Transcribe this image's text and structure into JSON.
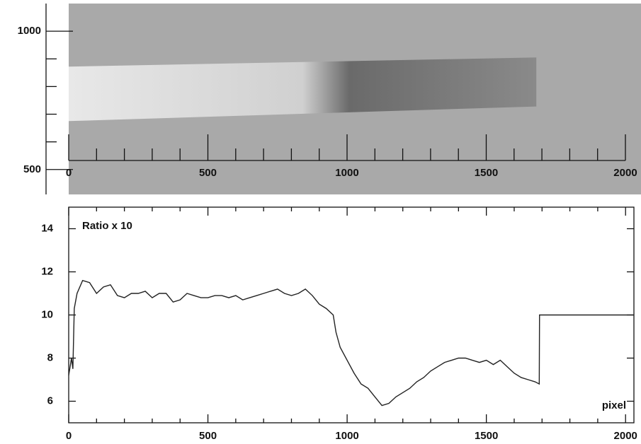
{
  "chart_data": [
    {
      "type": "image",
      "xlim": [
        0,
        2056
      ],
      "ylim": [
        410,
        1100
      ],
      "xticks": [
        0,
        500,
        1000,
        1500,
        2000
      ],
      "xminorticks": [
        100,
        200,
        300,
        400,
        600,
        700,
        800,
        900,
        1100,
        1200,
        1300,
        1400,
        1600,
        1700,
        1800,
        1900
      ],
      "yticks": [
        500,
        1000
      ],
      "yminorticks": [
        600,
        700,
        800,
        900
      ],
      "background": "#a9a9a9",
      "strip": {
        "x": [
          0,
          1680
        ],
        "top": [
          872,
          905
        ],
        "bottom": [
          675,
          728
        ]
      }
    },
    {
      "type": "line",
      "annotations": [
        "Ratio x 10",
        "pixel"
      ],
      "xlim": [
        0,
        2030
      ],
      "ylim": [
        5,
        15
      ],
      "xticks": [
        0,
        500,
        1000,
        1500,
        2000
      ],
      "xminorticks": [
        100,
        200,
        300,
        400,
        600,
        700,
        800,
        900,
        1100,
        1200,
        1300,
        1400,
        1600,
        1700,
        1800,
        1900
      ],
      "yticks": [
        6,
        8,
        10,
        12,
        14
      ],
      "series": [
        {
          "color": "#222222",
          "x": [
            0,
            10,
            15,
            20,
            30,
            50,
            75,
            100,
            125,
            150,
            175,
            200,
            225,
            250,
            275,
            300,
            325,
            350,
            375,
            400,
            425,
            450,
            475,
            500,
            525,
            550,
            575,
            600,
            625,
            650,
            675,
            700,
            725,
            750,
            775,
            800,
            825,
            850,
            875,
            900,
            925,
            950,
            960,
            975,
            1000,
            1025,
            1050,
            1075,
            1100,
            1125,
            1150,
            1175,
            1200,
            1225,
            1250,
            1275,
            1300,
            1325,
            1350,
            1375,
            1400,
            1425,
            1450,
            1475,
            1500,
            1525,
            1550,
            1575,
            1600,
            1625,
            1650,
            1675,
            1690,
            1691,
            2030
          ],
          "values": [
            7.2,
            8,
            7.5,
            10.3,
            11.0,
            11.6,
            11.5,
            11.0,
            11.3,
            11.4,
            10.9,
            10.8,
            11.0,
            11.0,
            11.1,
            10.8,
            11.0,
            11.0,
            10.6,
            10.7,
            11.0,
            10.9,
            10.8,
            10.8,
            10.9,
            10.9,
            10.8,
            10.9,
            10.7,
            10.8,
            10.9,
            11.0,
            11.1,
            11.2,
            11.0,
            10.9,
            11.0,
            11.2,
            10.9,
            10.5,
            10.3,
            10.0,
            9.2,
            8.5,
            7.9,
            7.3,
            6.8,
            6.6,
            6.2,
            5.8,
            5.9,
            6.2,
            6.4,
            6.6,
            6.9,
            7.1,
            7.4,
            7.6,
            7.8,
            7.9,
            8.0,
            8.0,
            7.9,
            7.8,
            7.9,
            7.7,
            7.9,
            7.6,
            7.3,
            7.1,
            7.0,
            6.9,
            6.8,
            10.0,
            10.0
          ]
        }
      ]
    }
  ]
}
